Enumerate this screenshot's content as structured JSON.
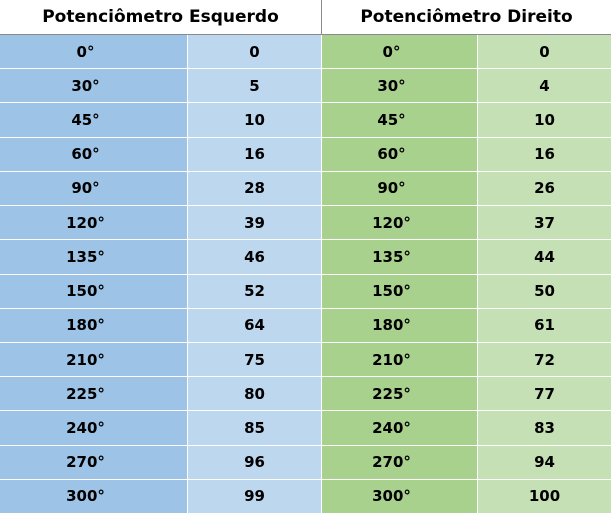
{
  "headers": {
    "left": "Potenciômetro Esquerdo",
    "right": "Potenciômetro Direito"
  },
  "colors": {
    "left_angle_bg": "#9dc3e6",
    "left_value_bg": "#bdd7ee",
    "right_angle_bg": "#a9d18e",
    "right_value_bg": "#c5e0b4"
  },
  "rows": [
    {
      "left_angle": "0°",
      "left_value": "0",
      "right_angle": "0°",
      "right_value": "0"
    },
    {
      "left_angle": "30°",
      "left_value": "5",
      "right_angle": "30°",
      "right_value": "4"
    },
    {
      "left_angle": "45°",
      "left_value": "10",
      "right_angle": "45°",
      "right_value": "10"
    },
    {
      "left_angle": "60°",
      "left_value": "16",
      "right_angle": "60°",
      "right_value": "16"
    },
    {
      "left_angle": "90°",
      "left_value": "28",
      "right_angle": "90°",
      "right_value": "26"
    },
    {
      "left_angle": "120°",
      "left_value": "39",
      "right_angle": "120°",
      "right_value": "37"
    },
    {
      "left_angle": "135°",
      "left_value": "46",
      "right_angle": "135°",
      "right_value": "44"
    },
    {
      "left_angle": "150°",
      "left_value": "52",
      "right_angle": "150°",
      "right_value": "50"
    },
    {
      "left_angle": "180°",
      "left_value": "64",
      "right_angle": "180°",
      "right_value": "61"
    },
    {
      "left_angle": "210°",
      "left_value": "75",
      "right_angle": "210°",
      "right_value": "72"
    },
    {
      "left_angle": "225°",
      "left_value": "80",
      "right_angle": "225°",
      "right_value": "77"
    },
    {
      "left_angle": "240°",
      "left_value": "85",
      "right_angle": "240°",
      "right_value": "83"
    },
    {
      "left_angle": "270°",
      "left_value": "96",
      "right_angle": "270°",
      "right_value": "94"
    },
    {
      "left_angle": "300°",
      "left_value": "99",
      "right_angle": "300°",
      "right_value": "100"
    }
  ]
}
